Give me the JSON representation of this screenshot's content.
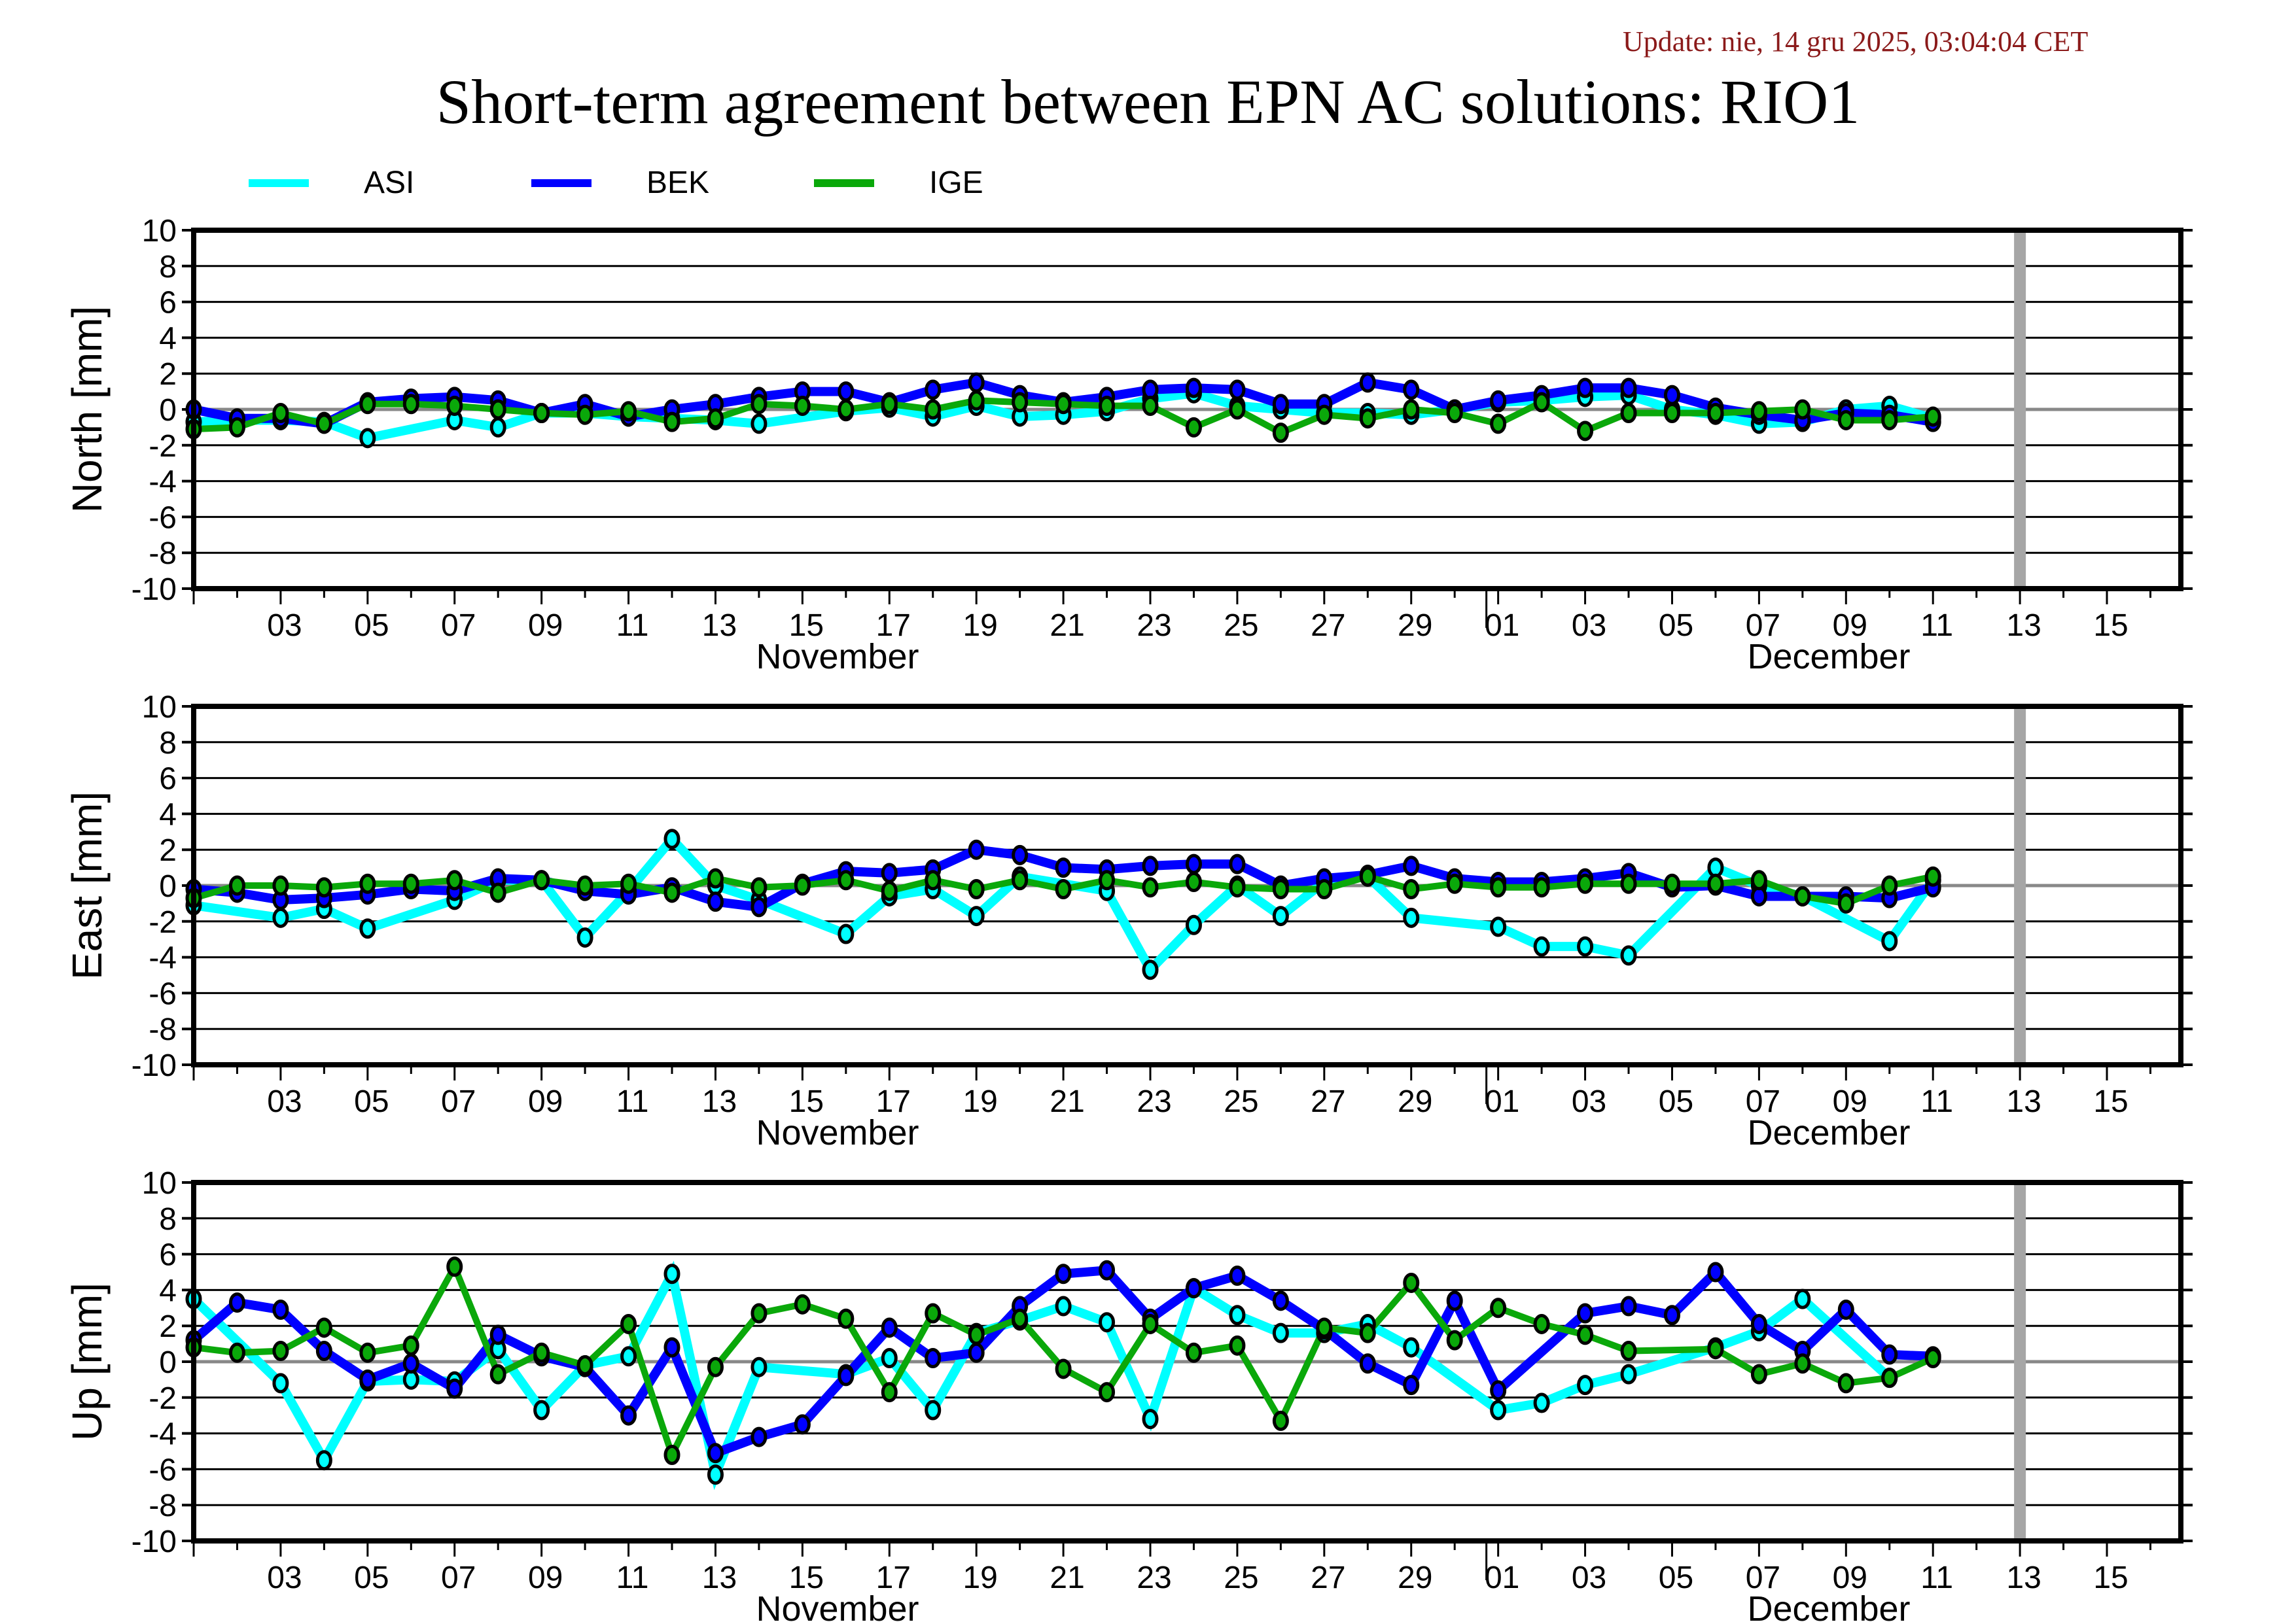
{
  "header": {
    "update_text": "Update: nie, 14 gru 2025, 03:04:04 CET",
    "title": "Short-term agreement between EPN AC solutions: RIO1"
  },
  "legend": [
    {
      "name": "ASI",
      "color": "#00ffff"
    },
    {
      "name": "BEK",
      "color": "#0000ff"
    },
    {
      "name": "IGE",
      "color": "#0aa80a"
    }
  ],
  "chart_data": {
    "type": "line",
    "title": "Short-term agreement between EPN AC solutions: RIO1",
    "x_axis": {
      "start": "2025-11-01",
      "end": "2025-12-16",
      "tick_labels": [
        "03",
        "05",
        "07",
        "09",
        "11",
        "13",
        "15",
        "17",
        "19",
        "21",
        "23",
        "25",
        "27",
        "29",
        "01",
        "03",
        "05",
        "07",
        "09",
        "11",
        "13",
        "15"
      ],
      "month_labels": [
        "November",
        "December"
      ],
      "current_day_marker": "2025-12-13"
    },
    "x_days": [
      1,
      2,
      3,
      4,
      5,
      6,
      7,
      8,
      9,
      10,
      11,
      12,
      13,
      14,
      15,
      16,
      17,
      18,
      19,
      20,
      21,
      22,
      23,
      24,
      25,
      26,
      27,
      28,
      29,
      30,
      31,
      32,
      33,
      34,
      35,
      36,
      37,
      38,
      39,
      40,
      41,
      42
    ],
    "panels": [
      {
        "ylabel": "North [mm]",
        "ylim": [
          -10,
          10
        ],
        "yticks": [
          "10",
          "8",
          "6",
          "4",
          "2",
          "0",
          "-2",
          "-4",
          "-6",
          "-8",
          "-10"
        ],
        "series": [
          {
            "name": "ASI",
            "values": [
              -0.7,
              -0.6,
              -0.6,
              -0.7,
              -1.6,
              null,
              -0.6,
              -1.0,
              -0.2,
              -0.2,
              -0.4,
              -0.5,
              -0.6,
              -0.8,
              null,
              -0.1,
              0.1,
              -0.4,
              0.2,
              -0.4,
              -0.3,
              -0.1,
              0.6,
              0.9,
              0.2,
              0.0,
              -0.2,
              -0.2,
              -0.3,
              0.0,
              0.4,
              0.5,
              0.7,
              0.8,
              0.0,
              -0.3,
              -0.8,
              -0.7,
              0.0,
              0.2,
              -0.5,
              null
            ]
          },
          {
            "name": "BEK",
            "values": [
              0.0,
              -0.5,
              -0.5,
              -0.8,
              0.4,
              0.6,
              0.7,
              0.5,
              -0.2,
              0.3,
              -0.4,
              0.0,
              0.3,
              0.7,
              1.0,
              1.0,
              0.4,
              1.1,
              1.5,
              0.8,
              0.4,
              0.7,
              1.1,
              1.2,
              1.1,
              0.3,
              0.3,
              1.5,
              1.1,
              0.0,
              0.5,
              0.8,
              1.2,
              1.2,
              0.8,
              0.1,
              -0.3,
              -0.6,
              -0.2,
              -0.3,
              -0.7,
              null
            ]
          },
          {
            "name": "IGE",
            "values": [
              -1.1,
              -1.0,
              -0.2,
              -0.8,
              0.3,
              0.3,
              0.2,
              0.0,
              -0.2,
              -0.3,
              -0.1,
              -0.7,
              -0.5,
              0.3,
              0.2,
              0.0,
              0.3,
              0.0,
              0.5,
              0.4,
              0.3,
              0.2,
              0.2,
              -1.0,
              0.0,
              -1.3,
              -0.3,
              -0.5,
              0.0,
              -0.2,
              -0.8,
              0.4,
              -1.2,
              -0.2,
              -0.2,
              -0.2,
              -0.1,
              0.0,
              -0.6,
              -0.6,
              -0.4,
              null
            ]
          }
        ]
      },
      {
        "ylabel": "East [mm]",
        "ylim": [
          -10,
          10
        ],
        "yticks": [
          "10",
          "8",
          "6",
          "4",
          "2",
          "0",
          "-2",
          "-4",
          "-6",
          "-8",
          "-10"
        ],
        "series": [
          {
            "name": "ASI",
            "values": [
              -1.1,
              null,
              -1.8,
              -1.3,
              -2.4,
              null,
              -0.8,
              0.3,
              0.3,
              -2.9,
              -0.3,
              2.6,
              0.0,
              -0.8,
              null,
              -2.7,
              -0.6,
              -0.2,
              -1.7,
              0.5,
              null,
              -0.3,
              -4.7,
              -2.2,
              0.0,
              -1.7,
              0.2,
              0.5,
              -1.8,
              null,
              -2.3,
              -3.4,
              -3.4,
              -3.9,
              null,
              1.0,
              0.0,
              -0.6,
              null,
              -3.1,
              0.3,
              null
            ]
          },
          {
            "name": "BEK",
            "values": [
              -0.2,
              -0.4,
              -0.8,
              -0.7,
              -0.5,
              -0.2,
              -0.3,
              0.4,
              0.3,
              -0.3,
              -0.5,
              -0.1,
              -0.9,
              -1.2,
              0.1,
              0.8,
              0.7,
              0.9,
              2.0,
              1.7,
              1.0,
              0.9,
              1.1,
              1.2,
              1.2,
              0.0,
              0.4,
              0.6,
              1.1,
              0.4,
              0.2,
              0.2,
              0.4,
              0.7,
              -0.1,
              0.0,
              -0.6,
              -0.6,
              -0.6,
              -0.7,
              -0.1,
              null
            ]
          },
          {
            "name": "IGE",
            "values": [
              -0.7,
              0.0,
              0.0,
              -0.1,
              0.1,
              0.1,
              0.3,
              -0.4,
              0.3,
              0.0,
              0.1,
              -0.4,
              0.4,
              -0.1,
              0.0,
              0.3,
              -0.3,
              0.3,
              -0.2,
              0.3,
              -0.2,
              0.3,
              -0.1,
              0.2,
              -0.1,
              -0.2,
              -0.2,
              0.5,
              -0.2,
              0.1,
              -0.1,
              -0.1,
              0.1,
              0.1,
              0.1,
              0.1,
              0.3,
              -0.6,
              -1.0,
              0.0,
              0.5,
              null
            ]
          }
        ]
      },
      {
        "ylabel": "Up [mm]",
        "ylim": [
          -10,
          10
        ],
        "yticks": [
          "10",
          "8",
          "6",
          "4",
          "2",
          "0",
          "-2",
          "-4",
          "-6",
          "-8",
          "-10"
        ],
        "series": [
          {
            "name": "ASI",
            "values": [
              3.5,
              null,
              -1.2,
              -5.5,
              -1.1,
              -1.0,
              -1.1,
              0.7,
              -2.7,
              -0.2,
              0.3,
              4.9,
              -6.3,
              -0.3,
              null,
              -0.7,
              0.2,
              -2.7,
              1.6,
              2.3,
              3.1,
              2.2,
              -3.2,
              4.1,
              2.6,
              1.6,
              1.6,
              2.1,
              0.8,
              null,
              -2.7,
              -2.3,
              -1.3,
              -0.7,
              null,
              0.8,
              1.7,
              3.5,
              null,
              -0.9,
              null,
              null
            ]
          },
          {
            "name": "BEK",
            "values": [
              1.2,
              3.3,
              2.9,
              0.6,
              -1.0,
              -0.1,
              -1.5,
              1.5,
              0.3,
              -0.3,
              -3.0,
              0.8,
              -5.1,
              -4.2,
              -3.5,
              -0.8,
              1.9,
              0.2,
              0.5,
              3.1,
              4.9,
              5.1,
              2.4,
              4.1,
              4.8,
              3.4,
              1.8,
              -0.1,
              -1.3,
              3.4,
              -1.6,
              null,
              2.7,
              3.1,
              2.6,
              5.0,
              2.1,
              0.6,
              2.9,
              0.4,
              0.3,
              null
            ]
          },
          {
            "name": "IGE",
            "values": [
              0.8,
              0.5,
              0.6,
              1.9,
              0.5,
              0.9,
              5.3,
              -0.7,
              0.5,
              -0.2,
              2.1,
              -5.2,
              -0.3,
              2.7,
              3.2,
              2.4,
              -1.7,
              2.7,
              1.5,
              2.4,
              -0.4,
              -1.7,
              2.1,
              0.5,
              0.9,
              -3.3,
              1.9,
              1.6,
              4.4,
              1.2,
              3.0,
              2.1,
              1.5,
              0.6,
              null,
              0.7,
              -0.7,
              -0.1,
              -1.2,
              -0.9,
              0.2,
              null
            ]
          }
        ]
      }
    ]
  }
}
